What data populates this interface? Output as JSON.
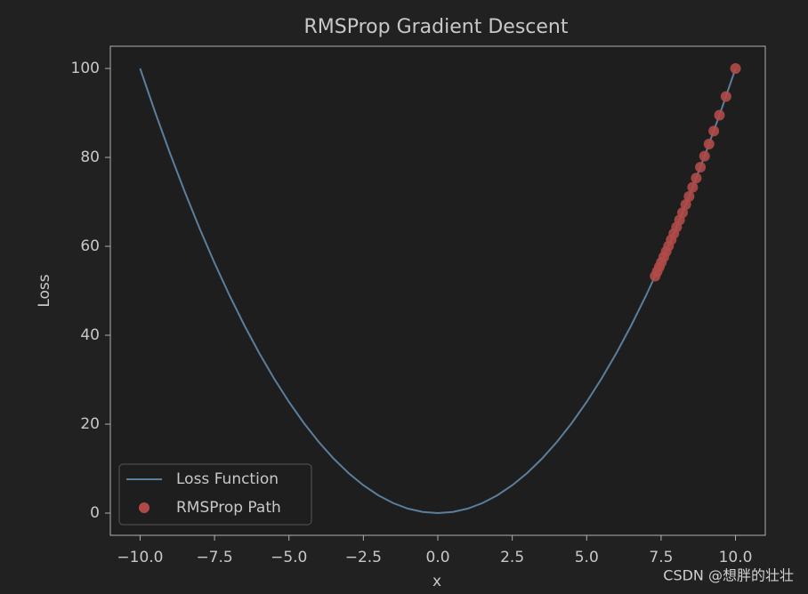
{
  "chart_data": {
    "type": "line",
    "title": "RMSProp Gradient Descent",
    "xlabel": "x",
    "ylabel": "Loss",
    "xlim": [
      -11,
      11
    ],
    "ylim": [
      -5,
      105
    ],
    "xticks": [
      {
        "value": -10,
        "label": "−10.0"
      },
      {
        "value": -7.5,
        "label": "−7.5"
      },
      {
        "value": -5,
        "label": "−5.0"
      },
      {
        "value": -2.5,
        "label": "−2.5"
      },
      {
        "value": 0,
        "label": "0.0"
      },
      2.5,
      {
        "value": 5,
        "label": "5.0"
      },
      7.5,
      {
        "value": 10,
        "label": "10.0"
      }
    ],
    "yticks": [
      0,
      20,
      40,
      60,
      80,
      100
    ],
    "legend": "lower left",
    "series": [
      {
        "name": "Loss Function",
        "type": "line",
        "color": "#5b7e9c",
        "x": [
          -10,
          -9.5,
          -9,
          -8.5,
          -8,
          -7.5,
          -7,
          -6.5,
          -6,
          -5.5,
          -5,
          -4.5,
          -4,
          -3.5,
          -3,
          -2.5,
          -2,
          -1.5,
          -1,
          -0.5,
          0,
          0.5,
          1,
          1.5,
          2,
          2.5,
          3,
          3.5,
          4,
          4.5,
          5,
          5.5,
          6,
          6.5,
          7,
          7.5,
          8,
          8.5,
          9,
          9.5,
          10
        ],
        "values": [
          100,
          90.25,
          81,
          72.25,
          64,
          56.25,
          49,
          42.25,
          36,
          30.25,
          25,
          20.25,
          16,
          12.25,
          9,
          6.25,
          4,
          2.25,
          1,
          0.25,
          0,
          0.25,
          1,
          2.25,
          4,
          6.25,
          9,
          12.25,
          16,
          20.25,
          25,
          30.25,
          36,
          42.25,
          49,
          56.25,
          64,
          72.25,
          81,
          90.25,
          100
        ]
      },
      {
        "name": "RMSProp Path",
        "type": "scatter",
        "color": "#b04a48",
        "x": [
          10,
          9.68,
          9.46,
          9.27,
          9.11,
          8.96,
          8.82,
          8.68,
          8.56,
          8.44,
          8.33,
          8.22,
          8.12,
          8.02,
          7.93,
          7.84,
          7.75,
          7.67,
          7.59,
          7.51,
          7.44,
          7.37,
          7.3
        ],
        "values": [
          100,
          93.7,
          89.49,
          85.93,
          82.99,
          80.28,
          77.79,
          75.34,
          73.27,
          71.23,
          69.39,
          67.57,
          65.93,
          64.32,
          62.88,
          61.47,
          60.06,
          58.83,
          57.61,
          56.4,
          55.35,
          54.32,
          53.29
        ]
      }
    ]
  },
  "watermark": "CSDN @想胖的壮壮"
}
